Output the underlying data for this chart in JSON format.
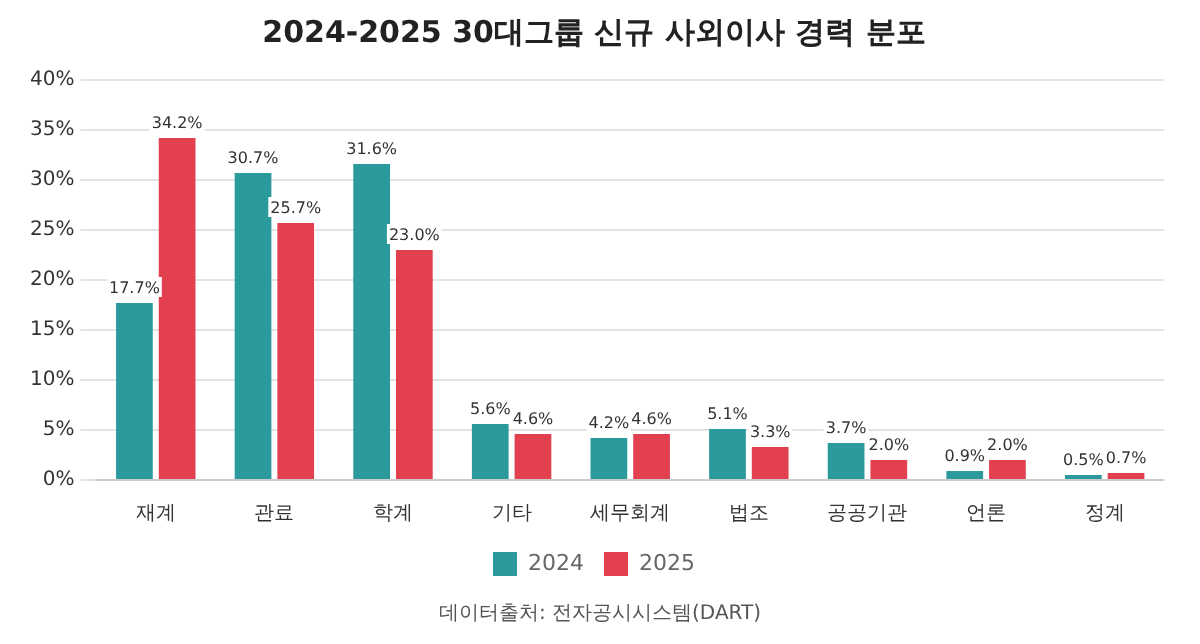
{
  "chart_data": {
    "type": "bar",
    "title": "2024-2025 30대그룹 신규 사외이사 경력 분포",
    "categories": [
      "재계",
      "관료",
      "학계",
      "기타",
      "세무회계",
      "법조",
      "공공기관",
      "언론",
      "정계"
    ],
    "series": [
      {
        "name": "2024",
        "color": "#2a9a9c",
        "values": [
          17.7,
          30.7,
          31.6,
          5.6,
          4.2,
          5.1,
          3.7,
          0.9,
          0.5
        ],
        "value_labels": [
          "17.7%",
          "30.7%",
          "31.6%",
          "5.6%",
          "4.2%",
          "5.1%",
          "3.7%",
          "0.9%",
          "0.5%"
        ]
      },
      {
        "name": "2025",
        "color": "#e2404f",
        "values": [
          34.2,
          25.7,
          23.0,
          4.6,
          4.6,
          3.3,
          2.0,
          2.0,
          0.7
        ],
        "value_labels": [
          "34.2%",
          "25.7%",
          "23.0%",
          "4.6%",
          "4.6%",
          "3.3%",
          "2.0%",
          "2.0%",
          "0.7%"
        ]
      }
    ],
    "ylim": [
      0,
      40
    ],
    "yticks": [
      {
        "value": 0,
        "label": "0%"
      },
      {
        "value": 5,
        "label": "5%"
      },
      {
        "value": 10,
        "label": "10%"
      },
      {
        "value": 15,
        "label": "15%"
      },
      {
        "value": 20,
        "label": "20%"
      },
      {
        "value": 25,
        "label": "25%"
      },
      {
        "value": 30,
        "label": "30%"
      },
      {
        "value": 35,
        "label": "35%"
      },
      {
        "value": 40,
        "label": "40%"
      }
    ],
    "grid": "y",
    "legend": "bottom",
    "annotations": [
      "데이터출처: 전자공시시스템(DART)"
    ]
  }
}
